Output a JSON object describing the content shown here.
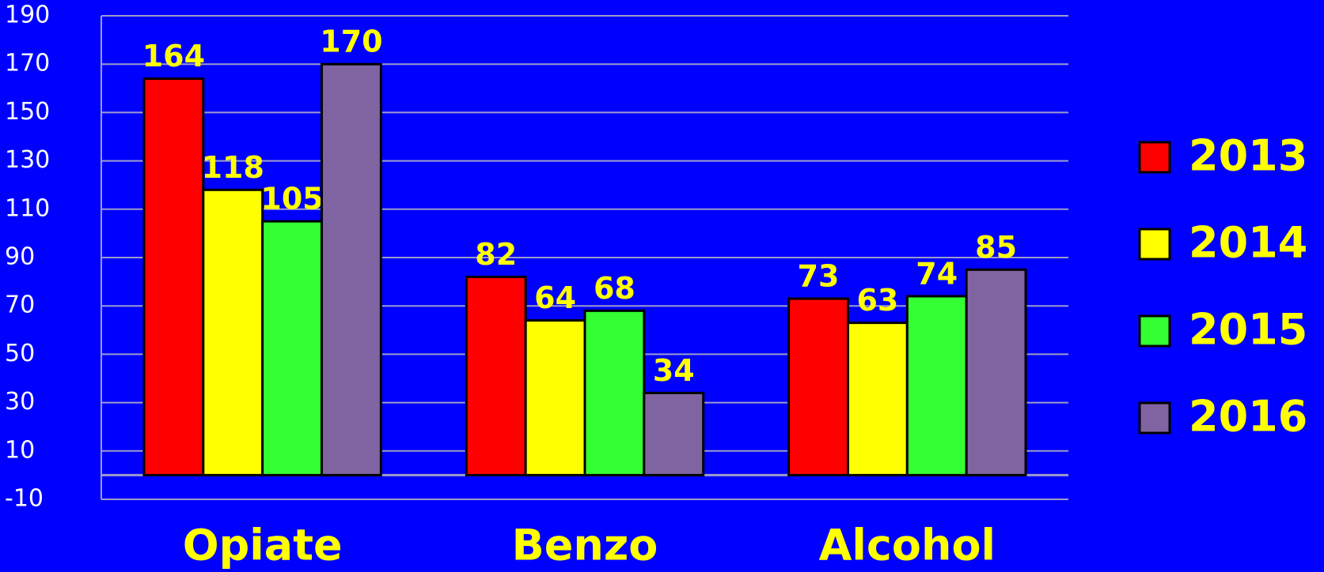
{
  "chart_data": {
    "type": "bar",
    "categories": [
      "Opiate",
      "Benzo",
      "Alcohol"
    ],
    "series": [
      {
        "name": "2013",
        "color": "#ff0000",
        "values": [
          164,
          82,
          73
        ]
      },
      {
        "name": "2014",
        "color": "#ffff00",
        "values": [
          118,
          64,
          63
        ]
      },
      {
        "name": "2015",
        "color": "#33ff33",
        "values": [
          105,
          68,
          74
        ]
      },
      {
        "name": "2016",
        "color": "#8064a2",
        "values": [
          170,
          34,
          85
        ]
      }
    ],
    "ylim": [
      -10,
      190
    ],
    "yticks": [
      -10,
      10,
      30,
      50,
      70,
      90,
      110,
      130,
      150,
      170,
      190
    ],
    "grid": true,
    "legend": "right"
  }
}
